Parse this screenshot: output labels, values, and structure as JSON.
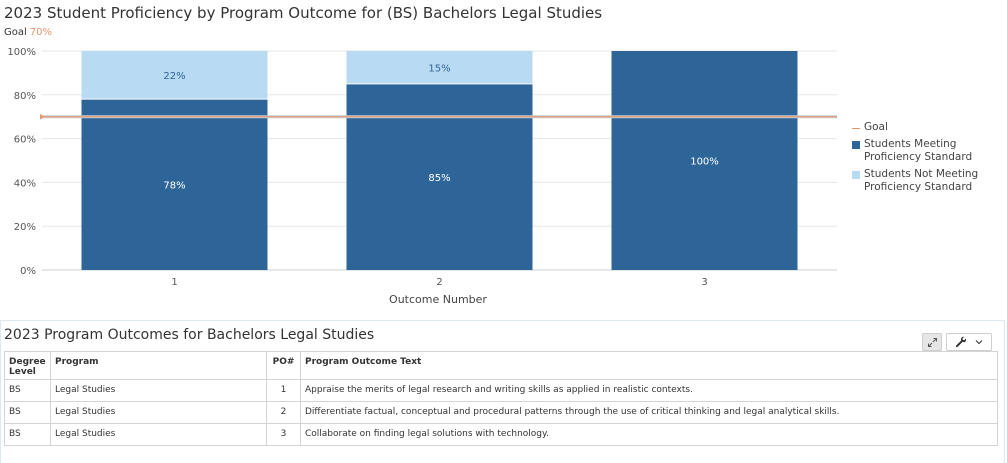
{
  "chart_title": "2023 Student Proficiency by Program Outcome for (BS) Bachelors Legal Studies",
  "goal_prefix": "Goal",
  "goal_value_text": "70%",
  "colors": {
    "meeting": "#2e6599",
    "not_meeting": "#b9daf3",
    "goal_line": "#e8956a",
    "grid": "#e6e6e6",
    "label_on_dark": "#ffffff",
    "label_on_light": "#2e6599"
  },
  "chart_data": {
    "type": "bar",
    "stacked": true,
    "title": "2023 Student Proficiency by Program Outcome for (BS) Bachelors Legal Studies",
    "categories": [
      "1",
      "2",
      "3"
    ],
    "xlabel": "Outcome Number",
    "ylabel": "",
    "ylim": [
      0,
      100
    ],
    "yticks": [
      "0%",
      "20%",
      "40%",
      "60%",
      "80%",
      "100%"
    ],
    "goal": 70,
    "grid": true,
    "legend_position": "right",
    "series": [
      {
        "name": "Students Meeting Proficiency Standard",
        "values": [
          78,
          85,
          100
        ],
        "labels": [
          "78%",
          "85%",
          "100%"
        ]
      },
      {
        "name": "Students Not Meeting Proficiency Standard",
        "values": [
          22,
          15,
          0
        ],
        "labels": [
          "22%",
          "15%",
          ""
        ]
      }
    ]
  },
  "legend": {
    "goal": "Goal",
    "meeting": "Students Meeting Proficiency Standard",
    "not_meeting": "Students Not Meeting Proficiency Standard"
  },
  "table": {
    "title": "2023 Program Outcomes for Bachelors Legal Studies",
    "headers": {
      "degree_level": "Degree Level",
      "program": "Program",
      "po": "PO#",
      "outcome_text": "Program Outcome Text"
    },
    "rows": [
      {
        "degree": "BS",
        "program": "Legal Studies",
        "po": "1",
        "text": "Appraise the merits of legal research and writing skills as applied in realistic contexts."
      },
      {
        "degree": "BS",
        "program": "Legal Studies",
        "po": "2",
        "text": "Differentiate factual, conceptual and procedural patterns through the use of critical thinking and legal analytical skills."
      },
      {
        "degree": "BS",
        "program": "Legal Studies",
        "po": "3",
        "text": "Collaborate on finding legal solutions with technology."
      }
    ]
  },
  "icons": {
    "expand": "expand-icon",
    "wrench": "wrench-icon",
    "dropdown": "chevron-down-icon"
  }
}
